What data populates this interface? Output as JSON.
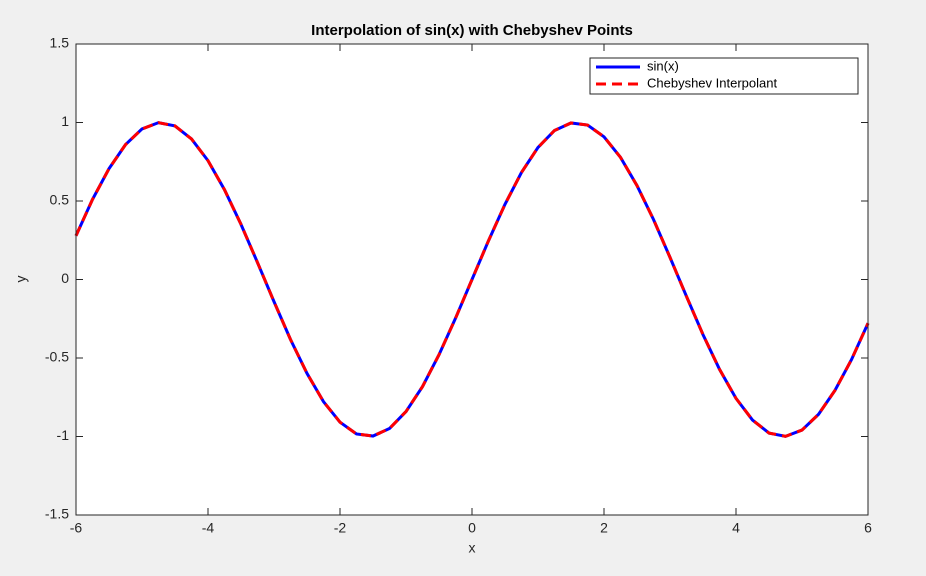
{
  "chart_data": {
    "type": "line",
    "title": "Interpolation of sin(x) with Chebyshev Points",
    "xlabel": "x",
    "ylabel": "y",
    "x": [
      -6,
      -5.75,
      -5.5,
      -5.25,
      -5,
      -4.75,
      -4.5,
      -4.25,
      -4,
      -3.75,
      -3.5,
      -3.25,
      -3,
      -2.75,
      -2.5,
      -2.25,
      -2,
      -1.75,
      -1.5,
      -1.25,
      -1,
      -0.75,
      -0.5,
      -0.25,
      0,
      0.25,
      0.5,
      0.75,
      1,
      1.25,
      1.5,
      1.75,
      2,
      2.25,
      2.5,
      2.75,
      3,
      3.25,
      3.5,
      3.75,
      4,
      4.25,
      4.5,
      4.75,
      5,
      5.25,
      5.5,
      5.75,
      6
    ],
    "series": [
      {
        "name": "sin(x)",
        "color": "#0000ff",
        "dash": "solid",
        "values": [
          0.279,
          0.51,
          0.706,
          0.859,
          0.959,
          0.999,
          0.978,
          0.895,
          0.757,
          0.572,
          0.351,
          0.108,
          -0.141,
          -0.382,
          -0.598,
          -0.778,
          -0.909,
          -0.984,
          -0.997,
          -0.949,
          -0.841,
          -0.682,
          -0.479,
          -0.247,
          0,
          0.247,
          0.479,
          0.682,
          0.841,
          0.949,
          0.997,
          0.984,
          0.909,
          0.778,
          0.598,
          0.382,
          0.141,
          -0.108,
          -0.351,
          -0.572,
          -0.757,
          -0.895,
          -0.978,
          -0.999,
          -0.959,
          -0.859,
          -0.706,
          -0.51,
          -0.279
        ]
      },
      {
        "name": "Chebyshev Interpolant",
        "color": "#ff0000",
        "dash": "dashed",
        "values": [
          0.279,
          0.51,
          0.706,
          0.859,
          0.959,
          0.999,
          0.978,
          0.895,
          0.757,
          0.572,
          0.351,
          0.108,
          -0.141,
          -0.382,
          -0.598,
          -0.778,
          -0.909,
          -0.984,
          -0.997,
          -0.949,
          -0.841,
          -0.682,
          -0.479,
          -0.247,
          0,
          0.247,
          0.479,
          0.682,
          0.841,
          0.949,
          0.997,
          0.984,
          0.909,
          0.778,
          0.598,
          0.382,
          0.141,
          -0.108,
          -0.351,
          -0.572,
          -0.757,
          -0.895,
          -0.978,
          -0.999,
          -0.959,
          -0.859,
          -0.706,
          -0.51,
          -0.279
        ]
      }
    ],
    "xlim": [
      -6,
      6
    ],
    "xticks": [
      -6,
      -4,
      -2,
      0,
      2,
      4,
      6
    ],
    "ylim": [
      -1.5,
      1.5
    ],
    "yticks": [
      -1.5,
      -1,
      -0.5,
      0,
      0.5,
      1,
      1.5
    ],
    "grid": false,
    "legend": "northeast"
  }
}
